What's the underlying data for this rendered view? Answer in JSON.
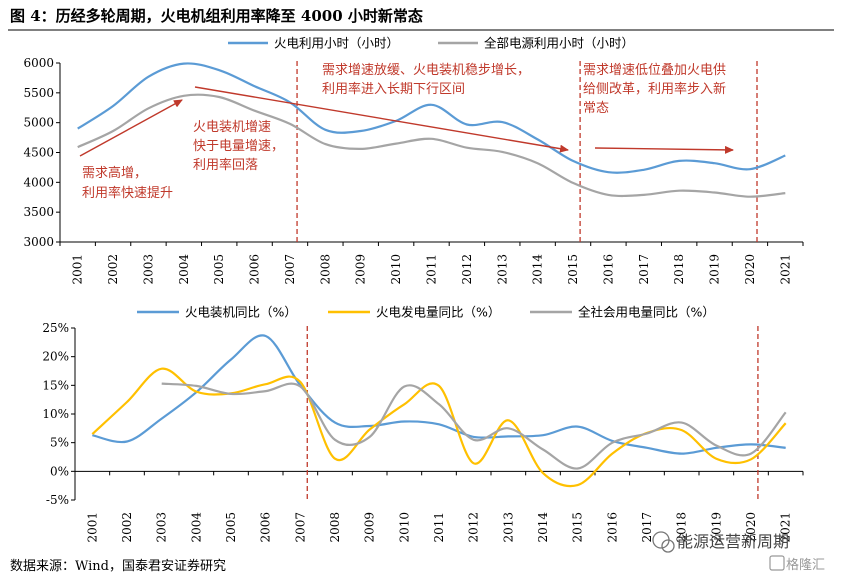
{
  "title": "图 4：历经多轮周期，火电机组利用率降至 4000 小时新常态",
  "source": "数据来源：Wind，国泰君安证券研究",
  "watermark": {
    "text1": "能源运营新周期",
    "text2": "格隆汇"
  },
  "colors": {
    "blue": "#5B9BD5",
    "gray": "#A5A5A5",
    "yellow": "#FFC000",
    "red": "#C0392B",
    "axis": "#000000"
  },
  "chart_data": [
    {
      "type": "line",
      "categories": [
        "2001",
        "2002",
        "2003",
        "2004",
        "2005",
        "2006",
        "2007",
        "2008",
        "2009",
        "2010",
        "2011",
        "2012",
        "2013",
        "2014",
        "2015",
        "2016",
        "2017",
        "2018",
        "2019",
        "2020",
        "2021"
      ],
      "ylim": [
        3000,
        6000
      ],
      "yticks": [
        "3000",
        "3500",
        "4000",
        "4500",
        "5000",
        "5500",
        "6000"
      ],
      "grid": false,
      "legend_position": "top",
      "series": [
        {
          "name": "火电利用小时（小时）",
          "color": "#5B9BD5",
          "values": [
            4900,
            5280,
            5770,
            5990,
            5880,
            5610,
            5340,
            4880,
            4860,
            5030,
            5300,
            4970,
            5010,
            4720,
            4360,
            4170,
            4210,
            4360,
            4320,
            4220,
            4450
          ]
        },
        {
          "name": "全部电源利用小时（小时）",
          "color": "#A5A5A5",
          "values": [
            4590,
            4860,
            5240,
            5450,
            5430,
            5200,
            4980,
            4640,
            4560,
            4650,
            4730,
            4580,
            4510,
            4320,
            3990,
            3790,
            3790,
            3860,
            3830,
            3760,
            3820
          ]
        }
      ],
      "vlines": [
        "2007",
        "2015",
        "2020"
      ],
      "annotations": [
        {
          "lines": [
            "需求高增，",
            "利用率快速提升"
          ]
        },
        {
          "lines": [
            "火电装机增速",
            "快于电量增速，",
            "利用率回落"
          ]
        },
        {
          "lines": [
            "需求增速放缓、火电装机稳步增长，",
            "利用率进入长期下行区间"
          ]
        },
        {
          "lines": [
            "需求增速低位叠加火电供",
            "给侧改革，利用率步入新",
            "常态"
          ]
        }
      ]
    },
    {
      "type": "line",
      "categories": [
        "2001",
        "2002",
        "2003",
        "2004",
        "2005",
        "2006",
        "2007",
        "2008",
        "2009",
        "2010",
        "2011",
        "2012",
        "2013",
        "2014",
        "2015",
        "2016",
        "2017",
        "2018",
        "2019",
        "2020",
        "2021"
      ],
      "ylim": [
        -5,
        25
      ],
      "yticks": [
        "-5%",
        "0%",
        "5%",
        "10%",
        "15%",
        "20%",
        "25%"
      ],
      "grid": false,
      "legend_position": "top",
      "series": [
        {
          "name": "火电装机同比（%）",
          "color": "#5B9BD5",
          "values": [
            6.3,
            5.2,
            9.2,
            13.8,
            19.5,
            23.6,
            15.0,
            8.5,
            7.9,
            8.7,
            8.2,
            6.0,
            6.1,
            6.3,
            7.8,
            5.3,
            4.1,
            3.1,
            4.1,
            4.7,
            4.1
          ]
        },
        {
          "name": "火电发电量同比（%）",
          "color": "#FFC000",
          "values": [
            6.5,
            12.1,
            17.9,
            13.9,
            13.6,
            15.2,
            15.6,
            2.2,
            7.3,
            11.7,
            14.9,
            1.4,
            8.9,
            -0.3,
            -2.4,
            3.1,
            6.7,
            7.2,
            2.2,
            2.1,
            8.4
          ]
        },
        {
          "name": "全社会用电量同比（%）",
          "color": "#A5A5A5",
          "values": [
            null,
            null,
            15.3,
            14.9,
            13.5,
            14.0,
            14.8,
            5.5,
            6.0,
            14.8,
            11.7,
            5.5,
            7.5,
            3.8,
            0.5,
            5.0,
            6.6,
            8.5,
            4.5,
            3.1,
            10.3
          ]
        }
      ],
      "vlines": [
        "2007",
        "2020"
      ]
    }
  ]
}
